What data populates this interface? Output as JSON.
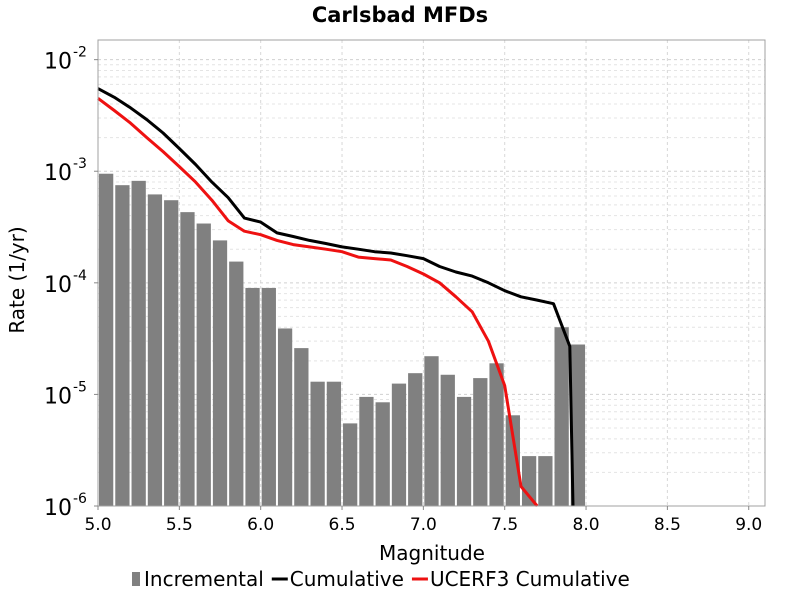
{
  "chart_data": {
    "type": "bar",
    "title": "Carlsbad MFDs",
    "xlabel": "Magnitude",
    "ylabel": "Rate (1/yr)",
    "xlim": [
      5.0,
      9.1
    ],
    "ylim": [
      1e-06,
      0.015
    ],
    "yscale": "log",
    "grid": true,
    "legend_position": "bottom",
    "xticks": [
      "5.0",
      "5.5",
      "6.0",
      "6.5",
      "7.0",
      "7.5",
      "8.0",
      "8.5",
      "9.0"
    ],
    "yticks": [
      {
        "base": "10",
        "exp": "-6"
      },
      {
        "base": "10",
        "exp": "-5"
      },
      {
        "base": "10",
        "exp": "-4"
      },
      {
        "base": "10",
        "exp": "-3"
      },
      {
        "base": "10",
        "exp": "-2"
      }
    ],
    "series": [
      {
        "name": "Incremental",
        "kind": "bar",
        "color": "#808080",
        "x": [
          5.0,
          5.1,
          5.2,
          5.3,
          5.4,
          5.5,
          5.6,
          5.7,
          5.8,
          5.9,
          6.0,
          6.1,
          6.2,
          6.3,
          6.4,
          6.5,
          6.6,
          6.7,
          6.8,
          6.9,
          7.0,
          7.1,
          7.2,
          7.3,
          7.4,
          7.5,
          7.6,
          7.7,
          7.8,
          7.9
        ],
        "values": [
          0.00095,
          0.00075,
          0.00082,
          0.00062,
          0.00055,
          0.00043,
          0.00034,
          0.00024,
          0.000155,
          9e-05,
          9e-05,
          3.9e-05,
          2.6e-05,
          1.3e-05,
          1.3e-05,
          5.5e-06,
          9.5e-06,
          8.5e-06,
          1.25e-05,
          1.55e-05,
          2.2e-05,
          1.5e-05,
          9.5e-06,
          1.4e-05,
          1.9e-05,
          6.5e-06,
          2.8e-06,
          2.8e-06,
          4e-05,
          2.8e-05
        ]
      },
      {
        "name": "Cumulative",
        "kind": "line",
        "color": "#000000",
        "x": [
          5.0,
          5.1,
          5.2,
          5.3,
          5.4,
          5.5,
          5.6,
          5.7,
          5.8,
          5.9,
          6.0,
          6.1,
          6.2,
          6.3,
          6.4,
          6.5,
          6.6,
          6.7,
          6.8,
          6.9,
          7.0,
          7.1,
          7.2,
          7.3,
          7.4,
          7.5,
          7.6,
          7.7,
          7.8,
          7.9,
          7.92
        ],
        "values": [
          0.0055,
          0.0046,
          0.0037,
          0.0029,
          0.0022,
          0.0016,
          0.00115,
          0.0008,
          0.00058,
          0.00038,
          0.00035,
          0.00028,
          0.00026,
          0.00024,
          0.000225,
          0.00021,
          0.0002,
          0.00019,
          0.000185,
          0.000175,
          0.000165,
          0.00014,
          0.000125,
          0.000115,
          0.0001,
          8.5e-05,
          7.5e-05,
          7e-05,
          6.5e-05,
          2.7e-05,
          1e-06
        ]
      },
      {
        "name": "UCERF3 Cumulative",
        "kind": "line",
        "color": "#ee1111",
        "x": [
          5.0,
          5.1,
          5.2,
          5.3,
          5.4,
          5.5,
          5.6,
          5.7,
          5.8,
          5.9,
          6.0,
          6.1,
          6.2,
          6.3,
          6.4,
          6.5,
          6.6,
          6.7,
          6.8,
          6.9,
          7.0,
          7.1,
          7.2,
          7.3,
          7.4,
          7.5,
          7.6,
          7.7
        ],
        "values": [
          0.0045,
          0.0035,
          0.0027,
          0.002,
          0.0015,
          0.0011,
          0.0008,
          0.00055,
          0.00036,
          0.00029,
          0.00027,
          0.00024,
          0.00022,
          0.00021,
          0.0002,
          0.00019,
          0.00017,
          0.000165,
          0.00016,
          0.00014,
          0.00012,
          0.0001,
          7.5e-05,
          5.5e-05,
          3e-05,
          1.2e-05,
          1.5e-06,
          1e-06
        ]
      }
    ]
  }
}
